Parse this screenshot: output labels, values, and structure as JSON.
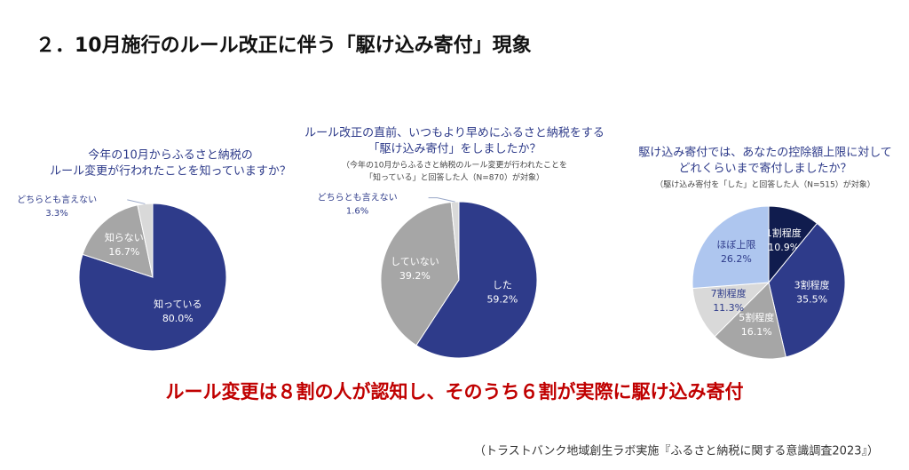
{
  "title": "２．10月施行のルール改正に伴う「駆け込み寄付」現象",
  "conclusion": "ルール変更は８割の人が認知し、そのうち６割が実際に駆け込み寄付",
  "source": "（トラストバンク地域創生ラボ実施『ふるさと納税に関する意識調査2023』）",
  "chart_data": [
    {
      "type": "pie",
      "title": [
        "今年の10月からふるさと納税の",
        "ルール変更が行われたことを知っていますか？"
      ],
      "categories": [
        "知っている",
        "知らない",
        "どちらとも言えない"
      ],
      "values": [
        80.0,
        16.7,
        3.3
      ],
      "value_labels": [
        "80.0%",
        "16.7%",
        "3.3%"
      ],
      "colors": [
        "#2e3b8a",
        "#a6a6a6",
        "#d9d9d9"
      ]
    },
    {
      "type": "pie",
      "title": [
        "ルール改正の直前、いつもより早めにふるさと納税をする",
        "「駆け込み寄付」をしましたか？"
      ],
      "subtitle": [
        "（今年の10月からふるさと納税のルール変更が行われたことを",
        "「知っている」と回答した人（N=870）が対象）"
      ],
      "categories": [
        "した",
        "していない",
        "どちらとも言えない"
      ],
      "values": [
        59.2,
        39.2,
        1.6
      ],
      "value_labels": [
        "59.2%",
        "39.2%",
        "1.6%"
      ],
      "colors": [
        "#2e3b8a",
        "#a6a6a6",
        "#d9d9d9"
      ]
    },
    {
      "type": "pie",
      "title": [
        "駆け込み寄付では、あなたの控除額上限に対して",
        "どれくらいまで寄付しましたか？"
      ],
      "subtitle": [
        "（駆け込み寄付を「した」と回答した人（N=515）が対象）"
      ],
      "categories": [
        "1割程度",
        "3割程度",
        "5割程度",
        "7割程度",
        "ほぼ上限"
      ],
      "values": [
        10.9,
        35.5,
        16.1,
        11.3,
        26.2
      ],
      "value_labels": [
        "10.9%",
        "35.5%",
        "16.1%",
        "11.3%",
        "26.2%"
      ],
      "colors": [
        "#101c4e",
        "#2e3b8a",
        "#a6a6a6",
        "#d9d9d9",
        "#aec6ef"
      ]
    }
  ]
}
